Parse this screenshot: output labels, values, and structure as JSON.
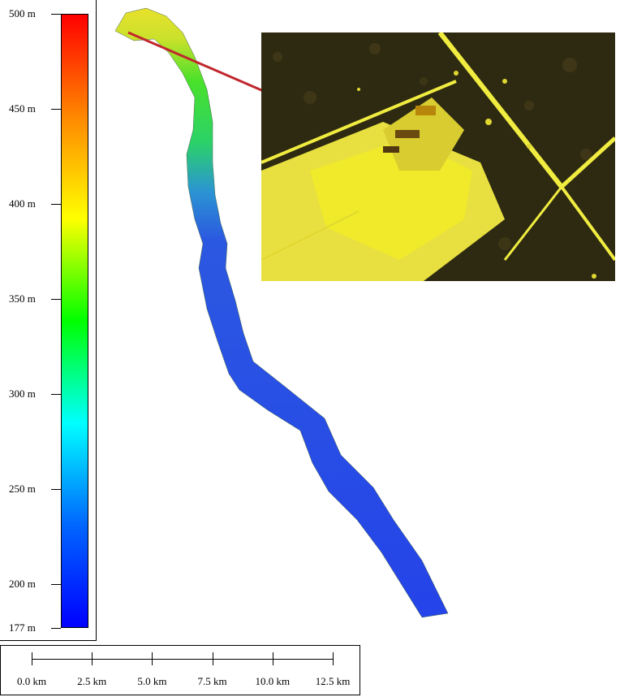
{
  "legend": {
    "colors": [
      "#ff0000",
      "#ff8800",
      "#ffff00",
      "#00ff00",
      "#00ffff",
      "#0066ff",
      "#0000ff"
    ],
    "ticks": [
      {
        "label": "500 m",
        "value": 500
      },
      {
        "label": "450 m",
        "value": 450
      },
      {
        "label": "400 m",
        "value": 400
      },
      {
        "label": "350 m",
        "value": 350
      },
      {
        "label": "300 m",
        "value": 300
      },
      {
        "label": "250 m",
        "value": 250
      },
      {
        "label": "200 m",
        "value": 200
      },
      {
        "label": "177 m",
        "value": 177
      }
    ],
    "min": 177,
    "max": 500
  },
  "scale_bar": {
    "labels": [
      "0.0 km",
      "2.5 km",
      "5.0 km",
      "7.5 km",
      "10.0 km",
      "12.5 km"
    ]
  },
  "inset": {
    "highlight_color": "#ffff33",
    "background_color": "#2a2410",
    "leader_color": "#c0272d"
  }
}
